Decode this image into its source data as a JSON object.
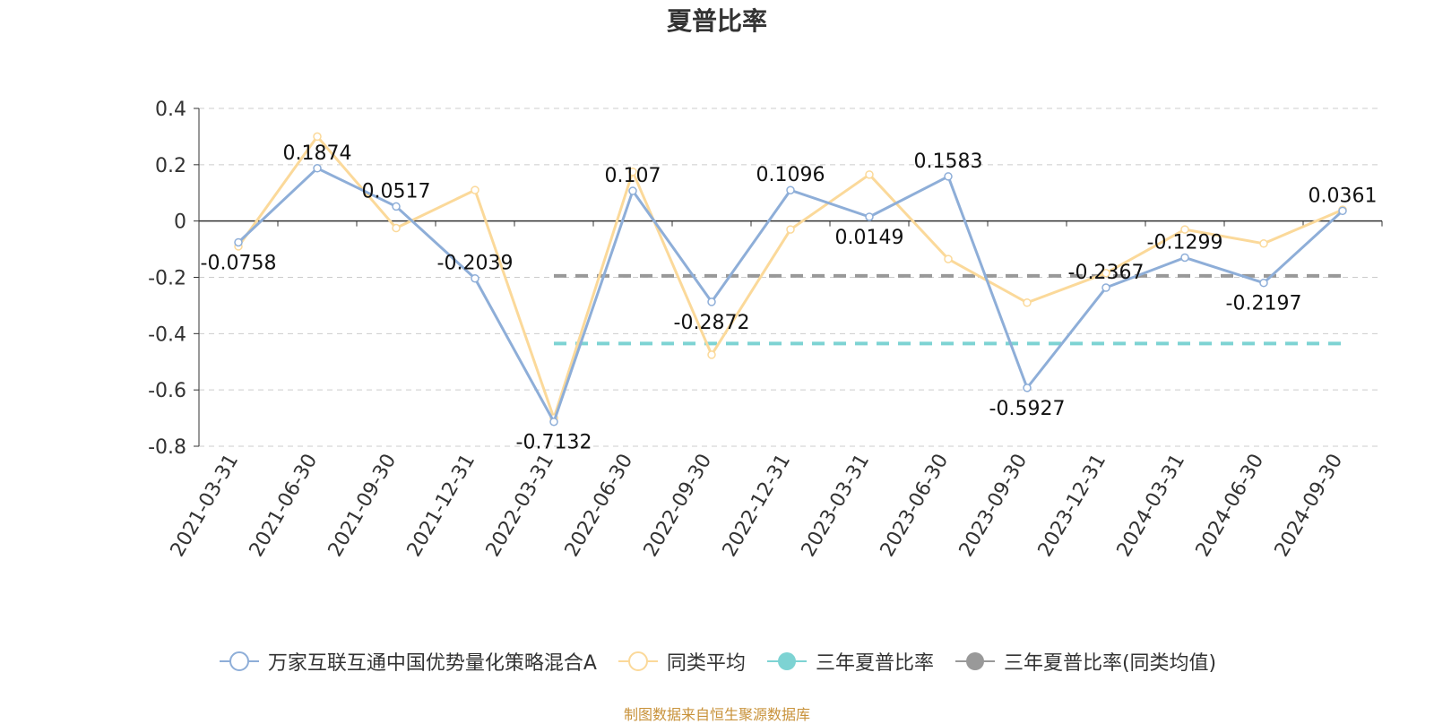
{
  "chart_data": {
    "type": "line",
    "title": "夏普比率",
    "categories": [
      "2021-03-31",
      "2021-06-30",
      "2021-09-30",
      "2021-12-31",
      "2022-03-31",
      "2022-06-30",
      "2022-09-30",
      "2022-12-31",
      "2023-03-31",
      "2023-06-30",
      "2023-09-30",
      "2023-12-31",
      "2024-03-31",
      "2024-06-30",
      "2024-09-30"
    ],
    "y_ticks": [
      "0.4",
      "0.2",
      "0",
      "-0.2",
      "-0.4",
      "-0.6",
      "-0.8"
    ],
    "ylim": [
      -0.8,
      0.4
    ],
    "grid": true,
    "legend_position": "bottom",
    "series": [
      {
        "name": "万家互联互通中国优势量化策略混合A",
        "color": "#8eaed8",
        "values": [
          -0.0758,
          0.1874,
          0.0517,
          -0.2039,
          -0.7132,
          0.107,
          -0.2872,
          0.1096,
          0.0149,
          0.1583,
          -0.5927,
          -0.2367,
          -0.1299,
          -0.2197,
          0.0361
        ],
        "labels": [
          "-0.0758",
          "0.1874",
          "0.0517",
          "-0.2039",
          "-0.7132",
          "0.107",
          "-0.2872",
          "0.1096",
          "0.0149",
          "0.1583",
          "-0.5927",
          "-0.2367",
          "-0.1299",
          "-0.2197",
          "0.0361"
        ]
      },
      {
        "name": "同类平均",
        "color": "#fbd99a",
        "values": [
          -0.09,
          0.3,
          -0.025,
          0.11,
          -0.7,
          0.175,
          -0.475,
          -0.03,
          0.165,
          -0.135,
          -0.29,
          -0.185,
          -0.03,
          -0.08,
          0.04
        ]
      },
      {
        "name": "三年夏普比率",
        "color": "#7dd3d3",
        "start_index": 4,
        "end_index": 14,
        "value": -0.435
      },
      {
        "name": "三年夏普比率(同类均值)",
        "color": "#999999",
        "start_index": 4,
        "end_index": 14,
        "value": -0.195
      }
    ]
  },
  "source_note": "制图数据来自恒生聚源数据库"
}
